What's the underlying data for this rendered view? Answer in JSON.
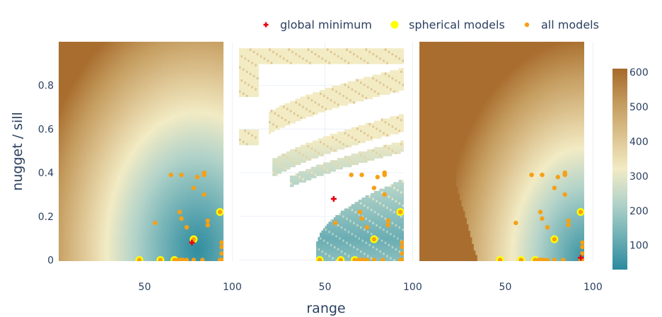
{
  "chart_data": {
    "type": "heatmap",
    "xlabel": "range",
    "ylabel": "nugget / sill",
    "legend": [
      {
        "label": "global minimum",
        "marker": "cross",
        "color": "#e8000b"
      },
      {
        "label": "spherical models",
        "marker": "circle",
        "color": "#ffff00"
      },
      {
        "label": "all models",
        "marker": "dot",
        "color": "#f6a015"
      }
    ],
    "legend_placement": "top",
    "colorscale": {
      "colors": [
        "#2b8a9e",
        "#6fb0b5",
        "#b3d3c9",
        "#f2ebc4",
        "#dcc28f",
        "#c39a5c",
        "#a6692a"
      ],
      "range": [
        30,
        610
      ],
      "ticks": [
        "100",
        "200",
        "300",
        "400",
        "500",
        "600"
      ],
      "tick_values": [
        100,
        200,
        300,
        400,
        500,
        600
      ]
    },
    "panels": [
      {
        "xlim": [
          1,
          95
        ],
        "x_ticks": [
          "50",
          "100"
        ],
        "x_tick_values": [
          50,
          100
        ],
        "ylim": [
          -0.005,
          1.0
        ],
        "y_ticks": [
          "0",
          "0.2",
          "0.4",
          "0.6",
          "0.8"
        ],
        "y_tick_values": [
          0,
          0.2,
          0.4,
          0.6,
          0.8
        ],
        "global_minimum": {
          "x": 77,
          "y": 0.08
        },
        "spherical_models": [
          {
            "x": 47,
            "y": 0.0
          },
          {
            "x": 59,
            "y": 0.0
          },
          {
            "x": 67,
            "y": 0.0
          },
          {
            "x": 78,
            "y": 0.095
          },
          {
            "x": 93,
            "y": 0.22
          }
        ]
      },
      {
        "xlim": [
          1,
          95
        ],
        "x_ticks": [
          "50",
          "100"
        ],
        "x_tick_values": [
          50,
          100
        ],
        "global_minimum": {
          "x": 55,
          "y": 0.28
        },
        "spherical_models": [
          {
            "x": 47,
            "y": 0.0
          },
          {
            "x": 59,
            "y": 0.0
          },
          {
            "x": 67,
            "y": 0.0
          },
          {
            "x": 78,
            "y": 0.095
          },
          {
            "x": 93,
            "y": 0.22
          }
        ]
      },
      {
        "xlim": [
          1,
          95
        ],
        "x_ticks": [
          "50",
          "100"
        ],
        "x_tick_values": [
          50,
          100
        ],
        "global_minimum": {
          "x": 93,
          "y": 0.01
        },
        "spherical_models": [
          {
            "x": 47,
            "y": 0.0
          },
          {
            "x": 59,
            "y": 0.0
          },
          {
            "x": 67,
            "y": 0.0
          },
          {
            "x": 78,
            "y": 0.095
          },
          {
            "x": 93,
            "y": 0.22
          }
        ]
      }
    ],
    "all_models": [
      {
        "x": 56,
        "y": 0.17
      },
      {
        "x": 65,
        "y": 0.39
      },
      {
        "x": 71,
        "y": 0.39
      },
      {
        "x": 70,
        "y": 0.22
      },
      {
        "x": 71,
        "y": 0.19
      },
      {
        "x": 74,
        "y": 0.15
      },
      {
        "x": 78,
        "y": 0.33
      },
      {
        "x": 80,
        "y": 0.38
      },
      {
        "x": 84,
        "y": 0.4
      },
      {
        "x": 84,
        "y": 0.39
      },
      {
        "x": 84,
        "y": 0.3
      },
      {
        "x": 86,
        "y": 0.18
      },
      {
        "x": 86,
        "y": 0.16
      },
      {
        "x": 94,
        "y": 0.08
      },
      {
        "x": 94,
        "y": 0.06
      },
      {
        "x": 94,
        "y": 0.03
      },
      {
        "x": 47,
        "y": 0.0
      },
      {
        "x": 59,
        "y": 0.0
      },
      {
        "x": 67,
        "y": 0.0
      },
      {
        "x": 69,
        "y": 0.0
      },
      {
        "x": 70,
        "y": 0.0
      },
      {
        "x": 71,
        "y": 0.0
      },
      {
        "x": 72,
        "y": 0.0
      },
      {
        "x": 74,
        "y": 0.0
      },
      {
        "x": 78,
        "y": 0.0
      },
      {
        "x": 83,
        "y": 0.0
      },
      {
        "x": 93,
        "y": 0.0
      },
      {
        "x": 94,
        "y": 0.0
      },
      {
        "x": 95,
        "y": 0.0
      },
      {
        "x": 78,
        "y": 0.095
      },
      {
        "x": 93,
        "y": 0.22
      }
    ]
  }
}
